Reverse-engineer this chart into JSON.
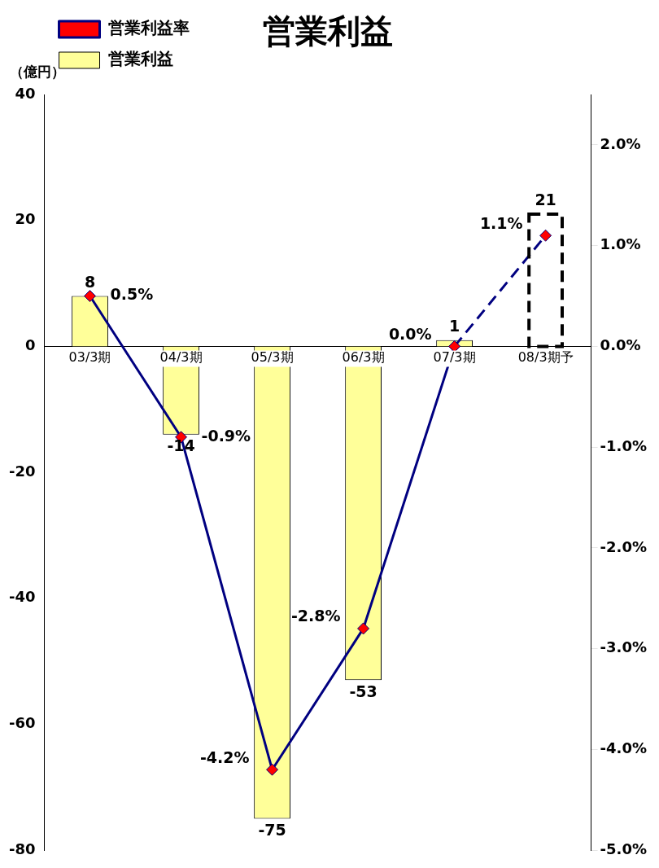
{
  "chart_data": {
    "type": "bar",
    "title": "営業利益",
    "ylabel": "（億円）",
    "categories": [
      "03/3期",
      "04/3期",
      "05/3期",
      "06/3期",
      "07/3期",
      "08/3期予"
    ],
    "series": [
      {
        "name": "営業利益",
        "color": "#ffff99",
        "values": [
          8,
          -14,
          -75,
          -53,
          1,
          null
        ]
      },
      {
        "color": "#000000",
        "line_style": "dashed",
        "values": [
          null,
          null,
          null,
          null,
          null,
          21
        ]
      },
      {
        "name": "営業利益率",
        "type": "line",
        "axis": "y2",
        "color": "#000080",
        "marker": "diamond",
        "values": [
          0.5,
          -0.9,
          -4.2,
          -2.8,
          0.0,
          null
        ],
        "value_labels": [
          "0.5%",
          "-0.9%",
          "-4.2%",
          "-2.8%",
          "0.0%",
          null
        ]
      },
      {
        "type": "line",
        "axis": "y2",
        "color": "#000080",
        "marker": "diamond",
        "line_style": "dashed",
        "values": [
          null,
          null,
          null,
          null,
          0.0,
          1.1
        ],
        "value_labels": [
          null,
          null,
          null,
          null,
          null,
          "1.1%"
        ]
      }
    ],
    "ylim": [
      -80,
      40
    ],
    "yticks": [
      -80,
      -60,
      -40,
      -20,
      0,
      20,
      40
    ],
    "y2lim": [
      -5,
      2.5
    ],
    "y2ticks": [
      {
        "value": -5,
        "label": "-5.0%"
      },
      {
        "value": -4,
        "label": "-4.0%"
      },
      {
        "value": -3,
        "label": "-3.0%"
      },
      {
        "value": -2,
        "label": "-2.0%"
      },
      {
        "value": -1,
        "label": "-1.0%"
      },
      {
        "value": 0,
        "label": "0.0%"
      },
      {
        "value": 1,
        "label": "1.0%"
      },
      {
        "value": 2,
        "label": "2.0%"
      }
    ],
    "data_labels": true,
    "legend": "top left",
    "grid": false
  }
}
